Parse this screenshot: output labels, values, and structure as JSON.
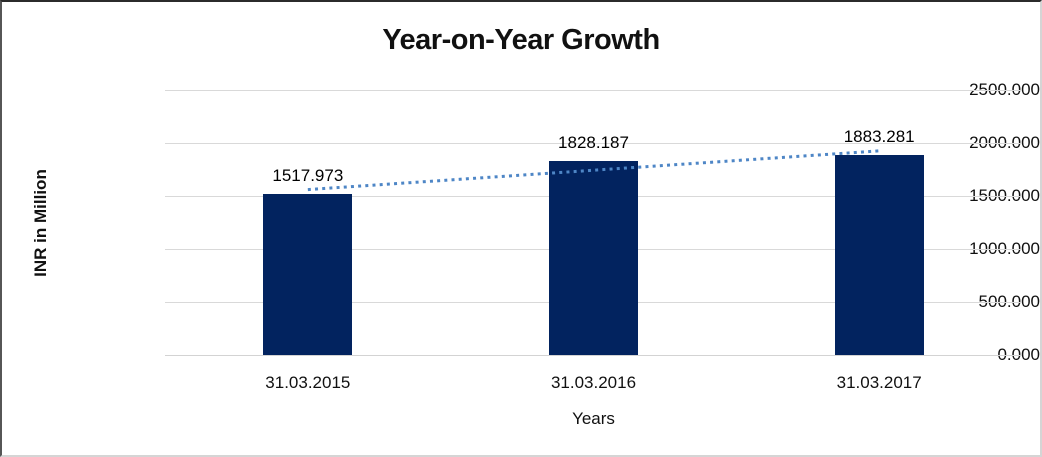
{
  "chart_data": {
    "type": "bar",
    "title": "Year-on-Year Growth",
    "categories": [
      "31.03.2015",
      "31.03.2016",
      "31.03.2017"
    ],
    "series": [
      {
        "name": "INR in Million",
        "values": [
          1517.973,
          1828.187,
          1883.281
        ],
        "data_labels": [
          "1517.973",
          "1828.187",
          "1883.281"
        ]
      }
    ],
    "xlabel": "Years",
    "ylabel": "INR in Million",
    "ylim": [
      0,
      2500
    ],
    "ytick_step": 500,
    "ytick_labels": [
      "0.000",
      "500.000",
      "1000.000",
      "1500.000",
      "2000.000",
      "2500.000"
    ],
    "grid": true,
    "legend": "none",
    "trendline": {
      "type": "linear",
      "style": "dotted"
    },
    "colors": {
      "bar": "#02235f",
      "trendline": "#4e86c6",
      "gridline": "#d9d9d9",
      "text": "#111111"
    }
  }
}
